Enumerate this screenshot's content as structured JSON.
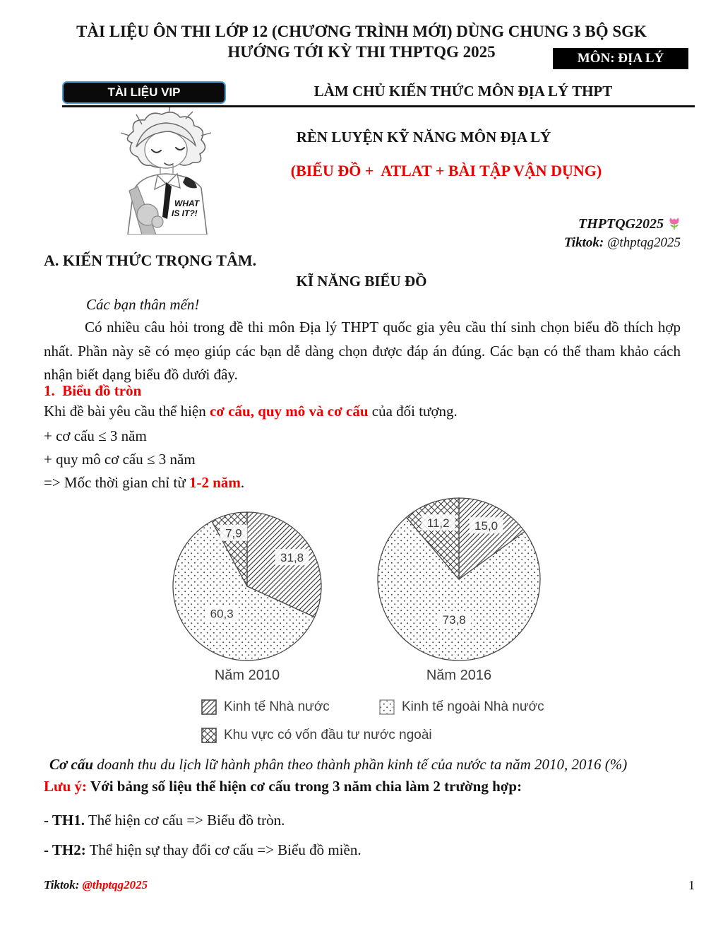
{
  "page": {
    "header": {
      "title_line1": "TÀI LIỆU ÔN THI LỚP 12 (CHƯƠNG TRÌNH MỚI) DÙNG CHUNG 3 BỘ SGK",
      "title_line2": "HƯỚNG TỚI KỲ THI THPTQG 2025",
      "subject_badge": "MÔN: ĐỊA LÝ",
      "vip_badge": "TÀI LIỆU VIP",
      "banner": "LÀM CHỦ KIẾN THỨC MÔN ĐỊA LÝ THPT"
    },
    "hero": {
      "speech_line1": "WHAT",
      "speech_line2": "IS IT?!",
      "heading": "RÈN LUYỆN KỸ NĂNG MÔN ĐỊA LÝ",
      "subheading": "(BIỂU ĐỒ +  ATLAT + BÀI TẬP VẬN DỤNG)",
      "brand": "THPTQG2025",
      "tiktok_label": "Tiktok:",
      "tiktok_handle": "@thptqg2025"
    },
    "section_a": {
      "heading": "A. KIẾN THỨC TRỌNG TÂM.",
      "subheading": "KĨ NĂNG BIỂU ĐỒ",
      "greeting": "Các bạn thân mến!",
      "intro": "Có nhiều câu hỏi trong đề thi môn Địa lý THPT quốc gia yêu cầu thí sinh chọn biểu đồ thích hợp nhất. Phần này sẽ có mẹo giúp các bạn dễ dàng chọn được đáp án đúng. Các bạn có thể tham khảo cách nhận biết dạng biểu đồ dưới đây."
    },
    "pie_section": {
      "heading": "1.  Biểu đồ tròn",
      "rule_prefix": "Khi đề bài yêu cầu thể hiện ",
      "rule_highlight": "cơ cấu, quy mô và cơ cấu",
      "rule_suffix": " của đối tượng.",
      "bullet1": "+ cơ cấu ≤ 3 năm",
      "bullet2": "+ quy mô cơ cấu ≤ 3 năm",
      "conclusion_prefix": "=> Mốc thời gian chỉ từ ",
      "conclusion_highlight": "1-2 năm",
      "conclusion_suffix": "."
    },
    "caption": {
      "bold_lead": "Cơ cấu",
      "rest": " doanh thu du lịch lữ hành phân theo thành phần kinh tế của nước ta năm 2010, 2016 (%)"
    },
    "note": {
      "label": "Lưu ý:",
      "text": " Với bảng số liệu thể hiện cơ cấu trong 3 năm chia làm 2 trường hợp:"
    },
    "cases": [
      {
        "label": "- TH1.",
        "text": " Thể hiện cơ cấu => Biểu đồ tròn."
      },
      {
        "label": "- TH2:",
        "text": " Thể hiện sự thay đổi cơ cấu => Biểu đồ miền."
      }
    ],
    "footer": {
      "tiktok_label": "Tiktok:",
      "tiktok_handle": "@thptqg2025",
      "page_number": "1"
    },
    "colors": {
      "accent_red": "#f20000",
      "vip_border_blue": "#4e9fd4",
      "badge_black": "#000000"
    }
  },
  "chart_data": {
    "type": "pie",
    "title": "Cơ cấu doanh thu du lịch lữ hành phân theo thành phần kinh tế của nước ta năm 2010, 2016 (%)",
    "unit": "%",
    "legend": [
      "Kinh tế Nhà nước",
      "Kinh tế ngoài Nhà nước",
      "Khu vực có vốn đầu tư nước ngoài"
    ],
    "legend_position": "bottom",
    "patterns": [
      "diagonal-hatch",
      "dots",
      "cross-hatch"
    ],
    "order": "clockwise-from-top",
    "pies": [
      {
        "label": "Năm 2010",
        "values": [
          31.8,
          60.3,
          7.9
        ],
        "display": [
          "31,8",
          "60,3",
          "7,9"
        ]
      },
      {
        "label": "Năm 2016",
        "values": [
          15.0,
          73.8,
          11.2
        ],
        "display": [
          "15,0",
          "73,8",
          "11,2"
        ]
      }
    ]
  }
}
